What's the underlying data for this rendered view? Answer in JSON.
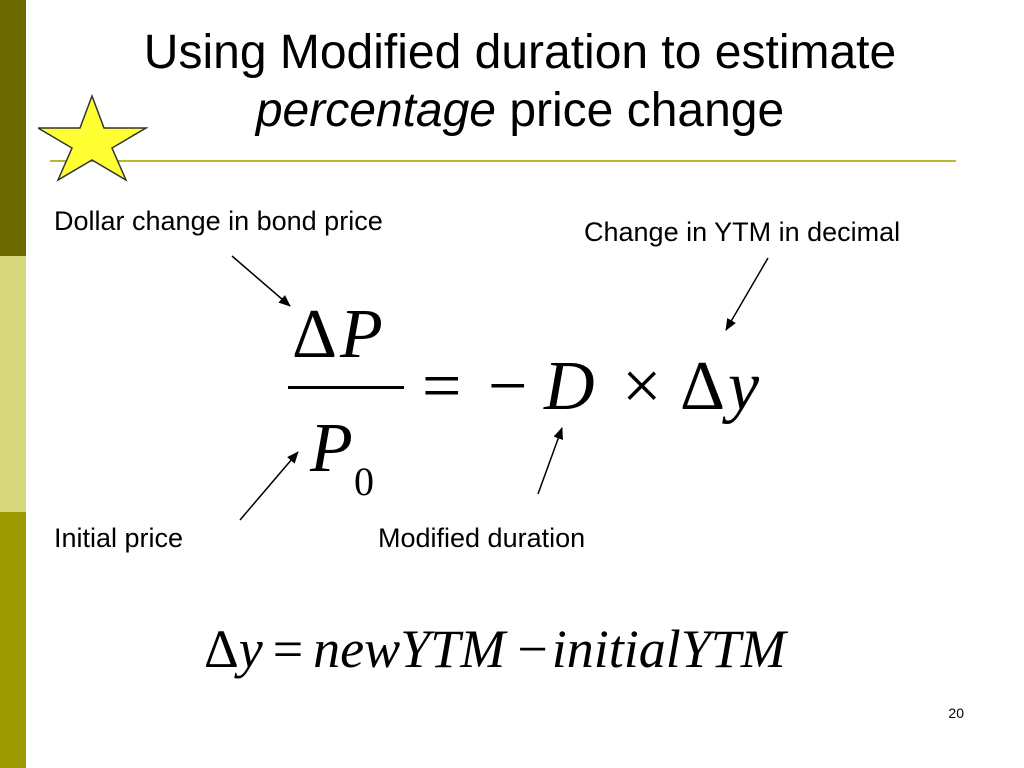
{
  "slide": {
    "title_line1": "Using Modified duration to estimate",
    "title_em": "percentage",
    "title_rest": " price change",
    "page_number": "20"
  },
  "labels": {
    "dollar_change": "Dollar change in bond price",
    "ytm_change": "Change in YTM in decimal",
    "initial_price": "Initial price",
    "modified_duration": "Modified duration"
  },
  "formula1": {
    "numerator_delta": "Δ",
    "numerator_var": "P",
    "denominator_var": "P",
    "denominator_sub": "0",
    "equals": "=",
    "minus": "−",
    "duration_var": "D",
    "times": "×",
    "delta": "Δ",
    "yield_var": "y"
  },
  "formula2": {
    "delta": "Δ",
    "y": "y",
    "equals": "=",
    "new_ytm": "newYTM",
    "minus": "−",
    "initial_ytm": "initialYTM"
  },
  "colors": {
    "sidebar_dark": "#6b6b00",
    "sidebar_light": "#d6d67a",
    "sidebar_mid": "#9c9c00",
    "rule": "#b8b82e",
    "star_fill": "#ffff33"
  },
  "icons": {
    "star": "star-icon"
  }
}
